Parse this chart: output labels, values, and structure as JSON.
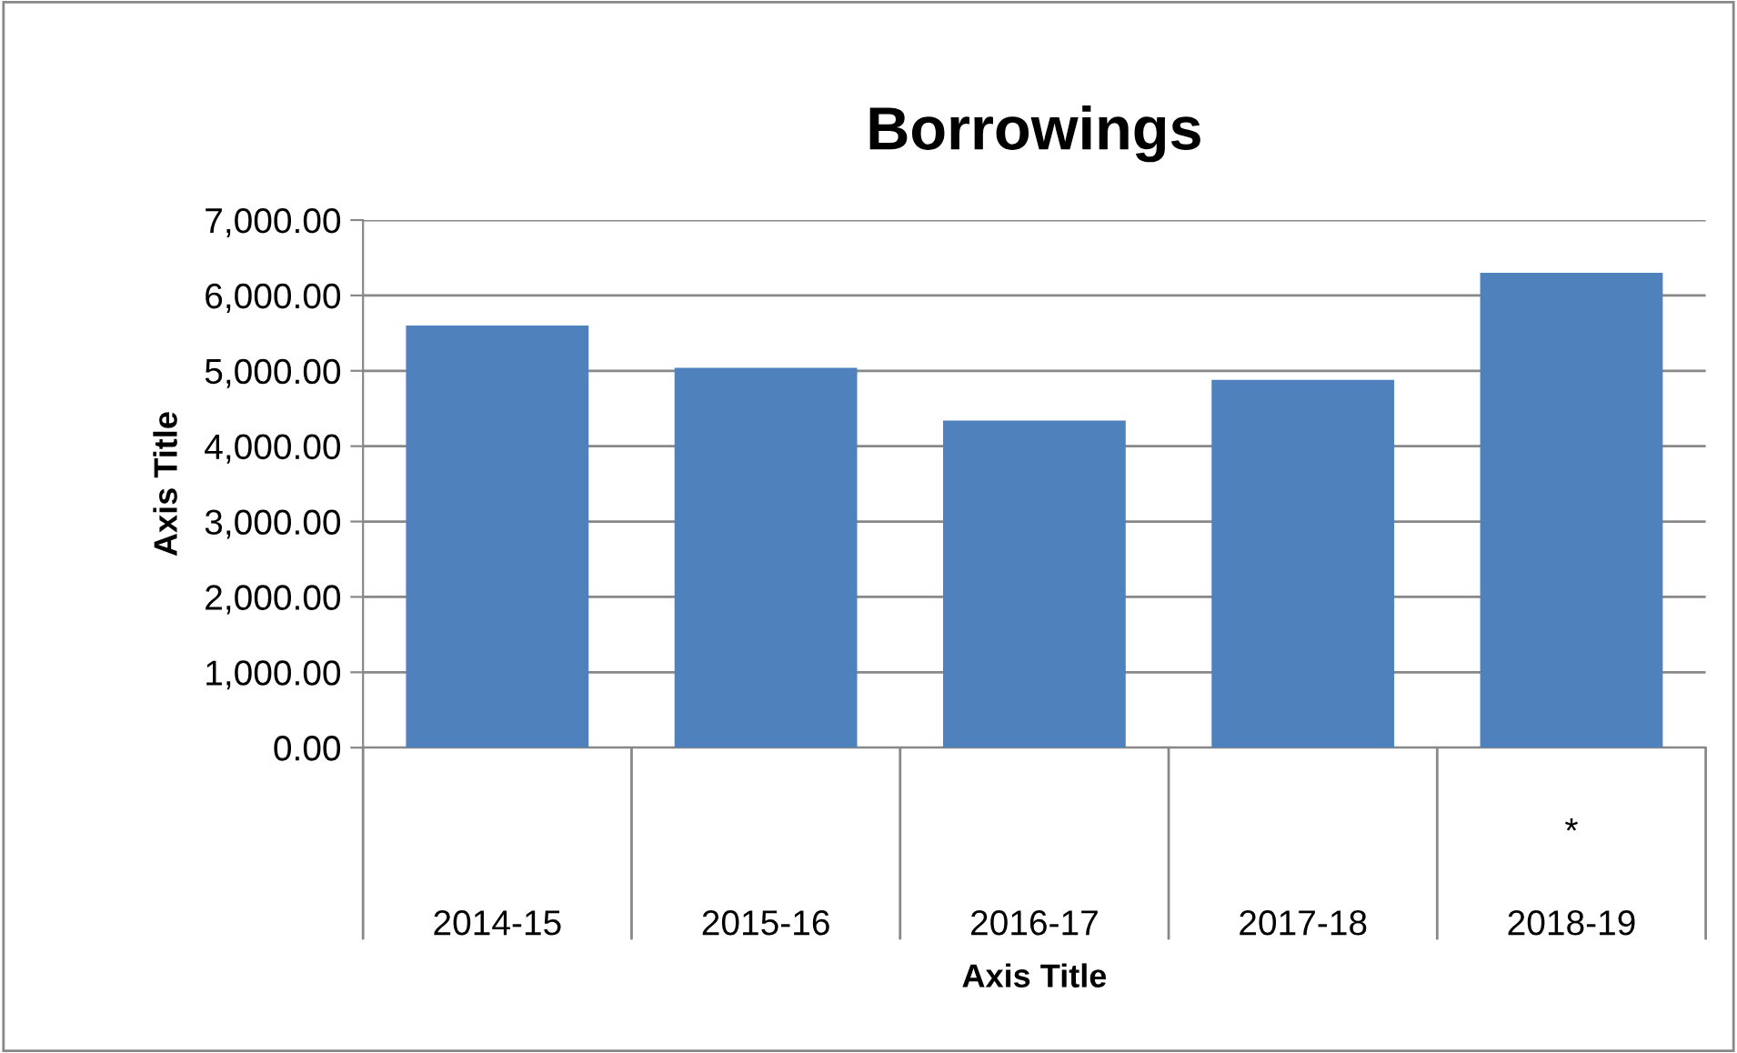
{
  "chart_data": {
    "type": "bar",
    "title": "Borrowings",
    "xlabel": "Axis Title",
    "ylabel": "Axis Title",
    "categories": [
      "2014-15",
      "2015-16",
      "2016-17",
      "2017-18",
      "2018-19"
    ],
    "values": [
      5600,
      5040,
      4340,
      4880,
      6300
    ],
    "color": "#4f81bd",
    "ylim": [
      0,
      7000
    ],
    "yticks": [
      {
        "value": 0,
        "label": "0.00"
      },
      {
        "value": 1000,
        "label": "1,000.00"
      },
      {
        "value": 2000,
        "label": "2,000.00"
      },
      {
        "value": 3000,
        "label": "3,000.00"
      },
      {
        "value": 4000,
        "label": "4,000.00"
      },
      {
        "value": 5000,
        "label": "5,000.00"
      },
      {
        "value": 6000,
        "label": "6,000.00"
      },
      {
        "value": 7000,
        "label": "7,000.00"
      }
    ],
    "grid": "y",
    "annotations": [
      "*"
    ]
  }
}
